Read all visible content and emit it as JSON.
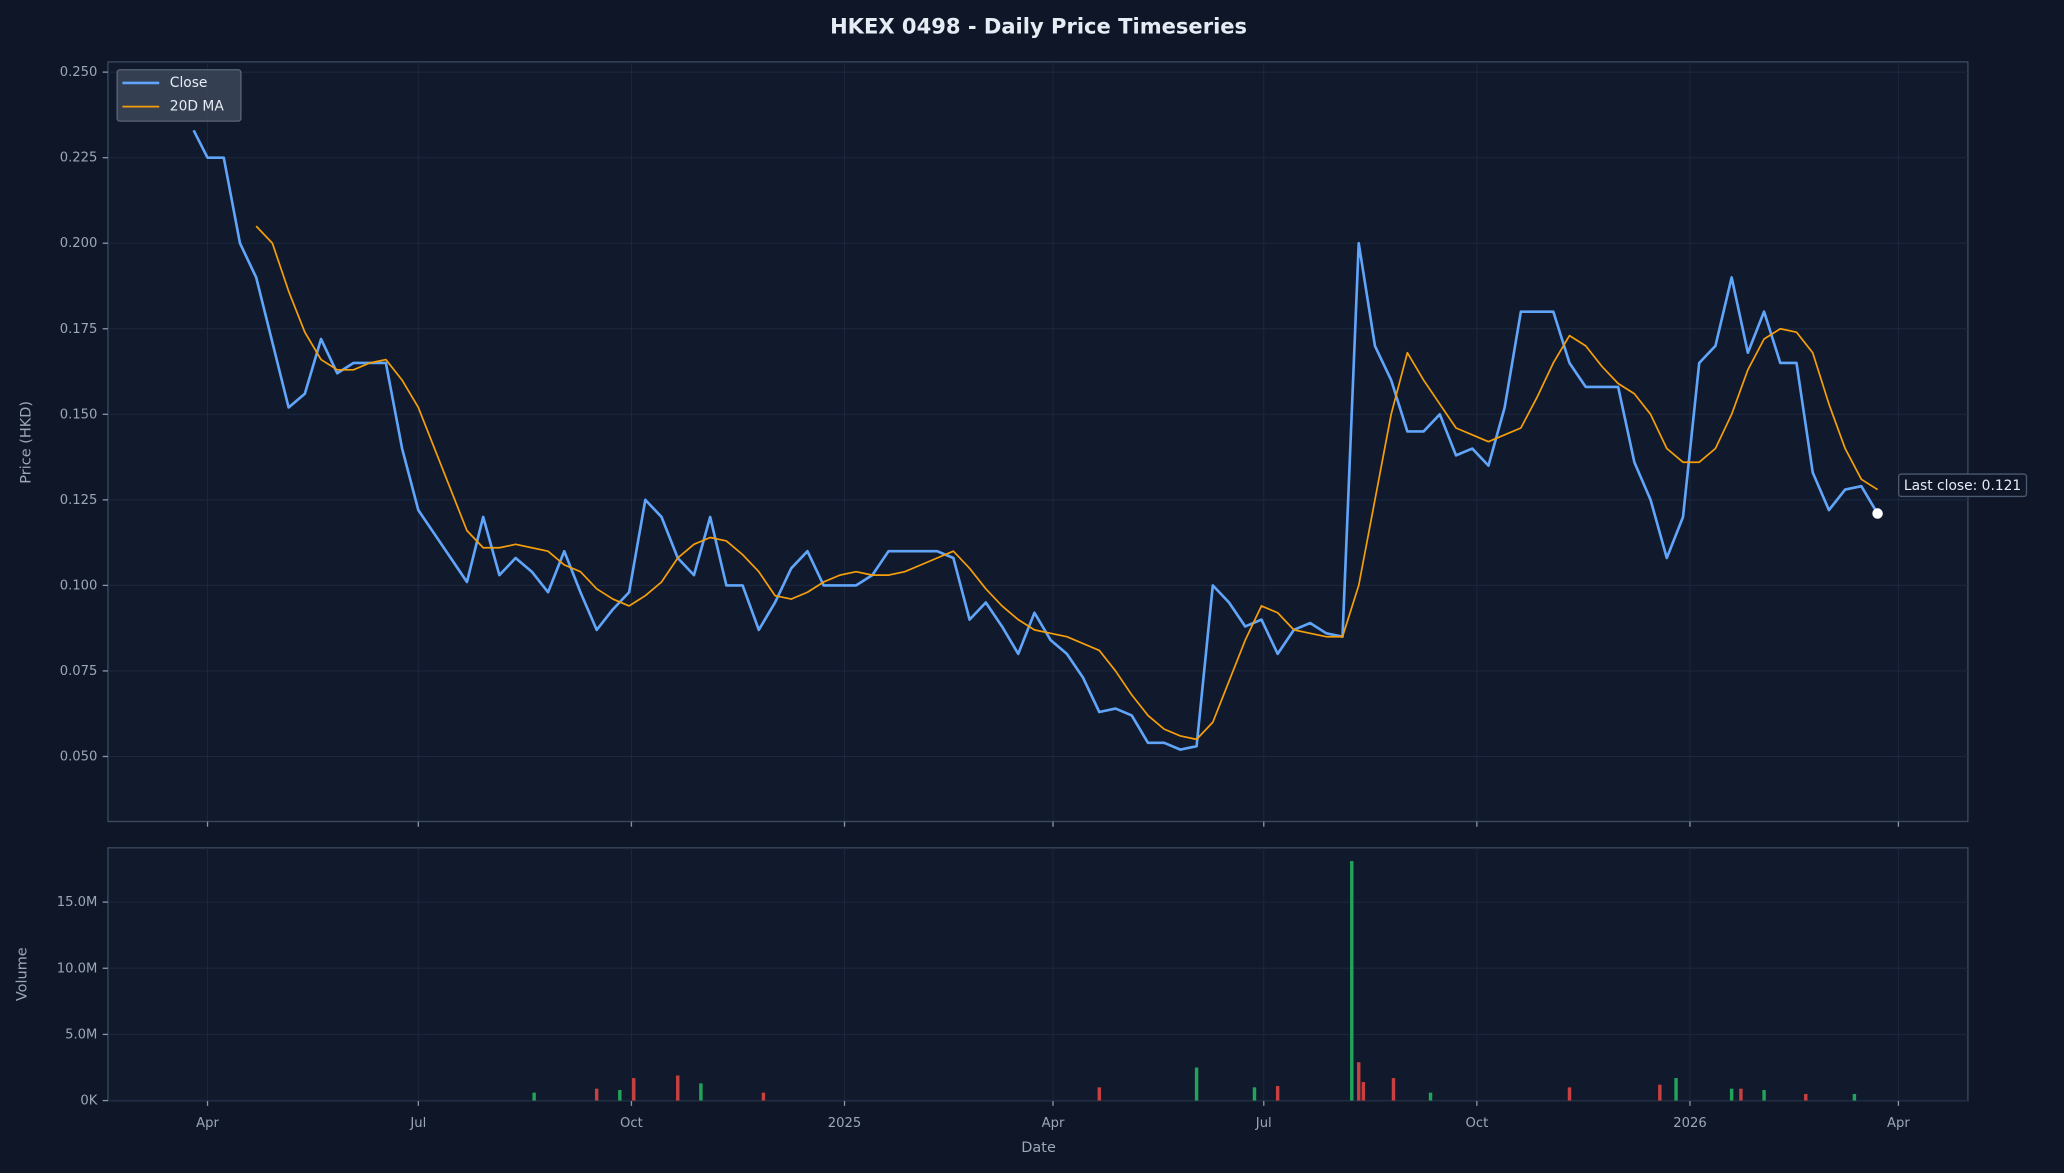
{
  "chart_data": [
    {
      "type": "line",
      "title": "HKEX 0498 - Daily Price Timeseries",
      "ylabel": "Price (HKD)",
      "ylim": [
        0.031,
        0.253
      ],
      "yticks": [
        {
          "value": 0.05,
          "label": "0.050"
        },
        0.075,
        {
          "value": 0.1,
          "label": "0.100"
        },
        0.125,
        {
          "value": 0.15,
          "label": "0.150"
        },
        0.175,
        {
          "value": 0.2,
          "label": "0.200"
        },
        0.225,
        {
          "value": 0.25,
          "label": "0.250"
        }
      ],
      "grid": true,
      "legend": "upper left",
      "annotation": "Last close: 0.121",
      "x": [
        "2024-03-26",
        "2024-04-01",
        "2024-04-08",
        "2024-04-15",
        "2024-04-22",
        "2024-04-29",
        "2024-05-06",
        "2024-05-13",
        "2024-05-20",
        "2024-05-27",
        "2024-06-03",
        "2024-06-10",
        "2024-06-17",
        "2024-06-24",
        "2024-07-01",
        "2024-07-08",
        "2024-07-15",
        "2024-07-22",
        "2024-07-29",
        "2024-08-05",
        "2024-08-12",
        "2024-08-19",
        "2024-08-26",
        "2024-09-02",
        "2024-09-09",
        "2024-09-16",
        "2024-09-23",
        "2024-09-30",
        "2024-10-07",
        "2024-10-14",
        "2024-10-21",
        "2024-10-28",
        "2024-11-04",
        "2024-11-11",
        "2024-11-18",
        "2024-11-25",
        "2024-12-02",
        "2024-12-09",
        "2024-12-16",
        "2024-12-23",
        "2024-12-30",
        "2025-01-06",
        "2025-01-13",
        "2025-01-20",
        "2025-01-27",
        "2025-02-03",
        "2025-02-10",
        "2025-02-17",
        "2025-02-24",
        "2025-03-03",
        "2025-03-10",
        "2025-03-17",
        "2025-03-24",
        "2025-03-31",
        "2025-04-07",
        "2025-04-14",
        "2025-04-21",
        "2025-04-28",
        "2025-05-05",
        "2025-05-12",
        "2025-05-19",
        "2025-05-26",
        "2025-06-02",
        "2025-06-09",
        "2025-06-16",
        "2025-06-23",
        "2025-06-30",
        "2025-07-07",
        "2025-07-14",
        "2025-07-21",
        "2025-07-28",
        "2025-08-04",
        "2025-08-11",
        "2025-08-18",
        "2025-08-25",
        "2025-09-01",
        "2025-09-08",
        "2025-09-15",
        "2025-09-22",
        "2025-09-29",
        "2025-10-06",
        "2025-10-13",
        "2025-10-20",
        "2025-10-27",
        "2025-11-03",
        "2025-11-10",
        "2025-11-17",
        "2025-11-24",
        "2025-12-01",
        "2025-12-08",
        "2025-12-15",
        "2025-12-22",
        "2025-12-29",
        "2026-01-05",
        "2026-01-12",
        "2026-01-19",
        "2026-01-26",
        "2026-02-02",
        "2026-02-09",
        "2026-02-16",
        "2026-02-23",
        "2026-03-02",
        "2026-03-09",
        "2026-03-16",
        "2026-03-23"
      ],
      "series": [
        {
          "name": "Close",
          "color": "#60a5fa",
          "values": [
            0.233,
            0.225,
            0.225,
            0.2,
            0.19,
            0.171,
            0.152,
            0.156,
            0.172,
            0.162,
            0.165,
            0.165,
            0.165,
            0.14,
            0.122,
            0.115,
            0.108,
            0.101,
            0.12,
            0.103,
            0.108,
            0.104,
            0.098,
            0.11,
            0.098,
            0.087,
            0.093,
            0.098,
            0.125,
            0.12,
            0.108,
            0.103,
            0.12,
            0.1,
            0.1,
            0.087,
            0.095,
            0.105,
            0.11,
            0.1,
            0.1,
            0.1,
            0.103,
            0.11,
            0.11,
            0.11,
            0.11,
            0.108,
            0.09,
            0.095,
            0.088,
            0.08,
            0.092,
            0.084,
            0.08,
            0.073,
            0.063,
            0.064,
            0.062,
            0.054,
            0.054,
            0.052,
            0.053,
            0.1,
            0.095,
            0.088,
            0.09,
            0.08,
            0.087,
            0.089,
            0.086,
            0.085,
            0.2,
            0.17,
            0.16,
            0.145,
            0.145,
            0.15,
            0.138,
            0.14,
            0.135,
            0.152,
            0.18,
            0.18,
            0.18,
            0.165,
            0.158,
            0.158,
            0.158,
            0.136,
            0.125,
            0.108,
            0.12,
            0.165,
            0.17,
            0.19,
            0.168,
            0.18,
            0.165,
            0.165,
            0.133,
            0.122,
            0.128,
            0.129,
            0.121
          ]
        },
        {
          "name": "20D MA",
          "color": "#f59e0b",
          "values": [
            null,
            null,
            null,
            null,
            0.205,
            0.2,
            0.186,
            0.174,
            0.166,
            0.163,
            0.163,
            0.165,
            0.166,
            0.16,
            0.152,
            0.14,
            0.128,
            0.116,
            0.111,
            0.111,
            0.112,
            0.111,
            0.11,
            0.106,
            0.104,
            0.099,
            0.096,
            0.094,
            0.097,
            0.101,
            0.108,
            0.112,
            0.114,
            0.113,
            0.109,
            0.104,
            0.097,
            0.096,
            0.098,
            0.101,
            0.103,
            0.104,
            0.103,
            0.103,
            0.104,
            0.106,
            0.108,
            0.11,
            0.105,
            0.099,
            0.094,
            0.09,
            0.087,
            0.086,
            0.085,
            0.083,
            0.081,
            0.075,
            0.068,
            0.062,
            0.058,
            0.056,
            0.055,
            0.06,
            0.072,
            0.084,
            0.094,
            0.092,
            0.087,
            0.086,
            0.085,
            0.085,
            0.1,
            0.125,
            0.15,
            0.168,
            0.16,
            0.153,
            0.146,
            0.144,
            0.142,
            0.144,
            0.146,
            0.155,
            0.165,
            0.173,
            0.17,
            0.164,
            0.159,
            0.156,
            0.15,
            0.14,
            0.136,
            0.136,
            0.14,
            0.15,
            0.163,
            0.172,
            0.175,
            0.174,
            0.168,
            0.153,
            0.14,
            0.131,
            0.128
          ]
        }
      ]
    },
    {
      "type": "bar",
      "ylabel": "Volume",
      "xlabel": "Date",
      "xlim": [
        "2024-02-18",
        "2026-05-01"
      ],
      "xticks": [
        {
          "value": "2024-04-01",
          "label": "Apr"
        },
        {
          "value": "2024-07-01",
          "label": "Jul"
        },
        {
          "value": "2024-10-01",
          "label": "Oct"
        },
        {
          "value": "2025-01-01",
          "label": "2025"
        },
        {
          "value": "2025-04-01",
          "label": "Apr"
        },
        {
          "value": "2025-07-01",
          "label": "Jul"
        },
        {
          "value": "2025-10-01",
          "label": "Oct"
        },
        {
          "value": "2026-01-01",
          "label": "2026"
        },
        {
          "value": "2026-04-01",
          "label": "Apr"
        }
      ],
      "ylim": [
        0,
        19100000
      ],
      "yticks": [
        {
          "value": 0,
          "label": "0K"
        },
        {
          "value": 5000000,
          "label": "5.0M"
        },
        {
          "value": 10000000,
          "label": "10.0M"
        },
        {
          "value": 15000000,
          "label": "15.0M"
        }
      ],
      "grid": true,
      "x": [
        "2024-08-20",
        "2024-09-16",
        "2024-09-26",
        "2024-10-02",
        "2024-10-21",
        "2024-10-31",
        "2024-11-27",
        "2025-04-21",
        "2025-06-02",
        "2025-06-27",
        "2025-07-07",
        "2025-08-08",
        "2025-08-11",
        "2025-08-13",
        "2025-08-26",
        "2025-09-11",
        "2025-11-10",
        "2025-12-19",
        "2025-12-26",
        "2026-01-19",
        "2026-01-23",
        "2026-02-02",
        "2026-02-20",
        "2026-03-13"
      ],
      "values": [
        600000,
        900000,
        800000,
        1700000,
        1900000,
        1300000,
        600000,
        1000000,
        2500000,
        1000000,
        1100000,
        18100000,
        2900000,
        1400000,
        1700000,
        600000,
        1000000,
        1200000,
        1700000,
        900000,
        900000,
        800000,
        500000,
        500000
      ],
      "colors": [
        "#22a35a",
        "#c8403f",
        "#22a35a",
        "#c8403f",
        "#c8403f",
        "#22a35a",
        "#c8403f",
        "#c8403f",
        "#22a35a",
        "#22a35a",
        "#c8403f",
        "#22a35a",
        "#c8403f",
        "#c8403f",
        "#c8403f",
        "#22a35a",
        "#c8403f",
        "#c8403f",
        "#22a35a",
        "#22a35a",
        "#c8403f",
        "#22a35a",
        "#c8403f",
        "#22a35a"
      ]
    }
  ]
}
